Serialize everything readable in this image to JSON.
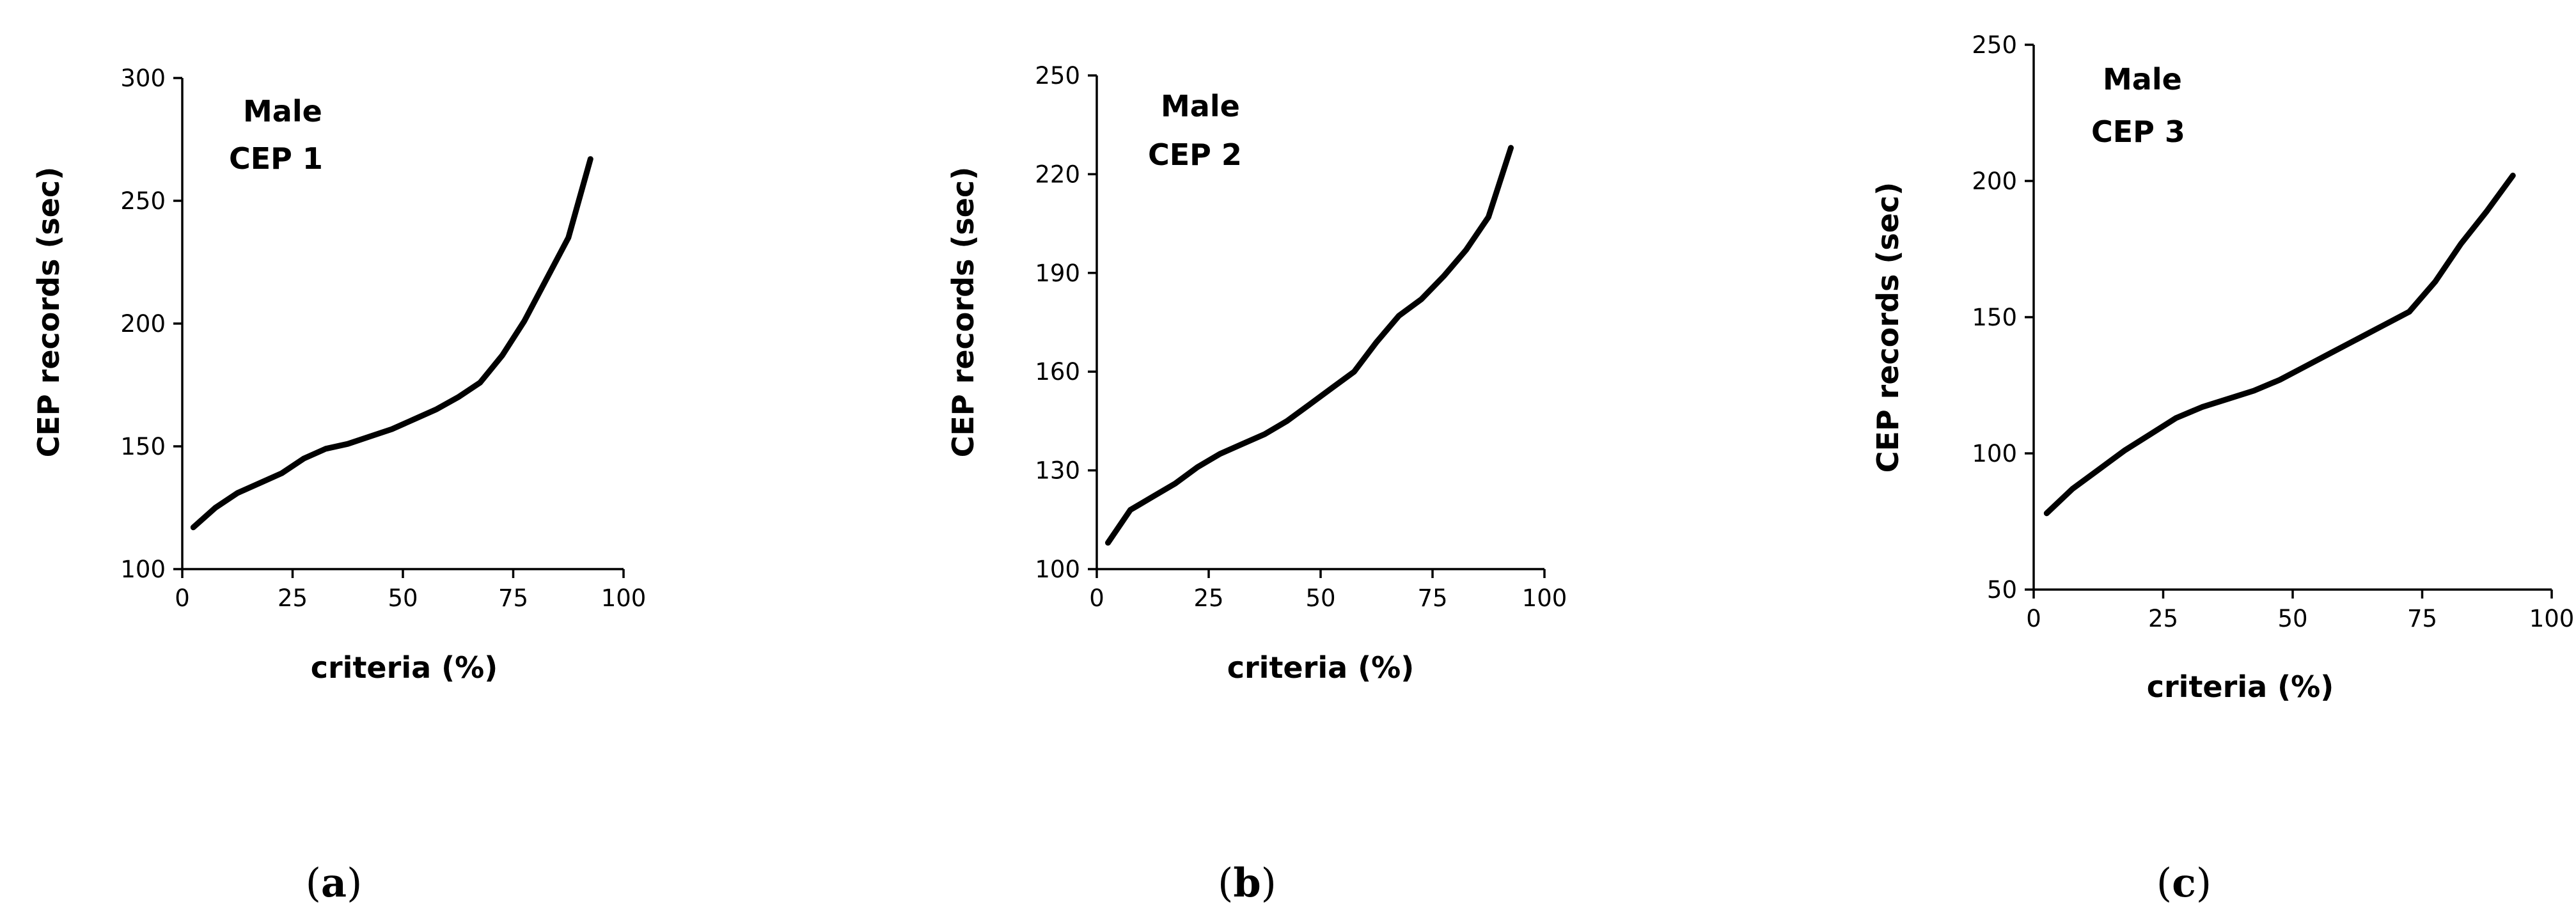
{
  "chart_data": [
    {
      "type": "line",
      "caption": {
        "open": "(",
        "letter": "a",
        "close": ")"
      },
      "annotation_lines": [
        "Male",
        "CEP 1"
      ],
      "xlabel": "criteria (%)",
      "ylabel": "CEP records (sec)",
      "xlim": [
        0,
        100
      ],
      "ylim": [
        100,
        300
      ],
      "xticks": [
        0,
        25,
        50,
        75,
        100
      ],
      "yticks": [
        100,
        150,
        200,
        250,
        300
      ],
      "grid": false,
      "series": [
        {
          "name": "Male CEP 1",
          "x": [
            2.5,
            7.5,
            12.5,
            17.5,
            22.5,
            27.5,
            32.5,
            37.5,
            42.5,
            47.5,
            52.5,
            57.5,
            62.5,
            67.5,
            72.5,
            77.5,
            82.5,
            87.5,
            92.5
          ],
          "y": [
            117,
            125,
            131,
            135,
            139,
            145,
            149,
            151,
            154,
            157,
            161,
            165,
            170,
            176,
            187,
            201,
            218,
            235,
            267
          ]
        }
      ]
    },
    {
      "type": "line",
      "caption": {
        "open": "(",
        "letter": "b",
        "close": ")"
      },
      "annotation_lines": [
        "Male",
        "CEP 2"
      ],
      "xlabel": "criteria (%)",
      "ylabel": "CEP records (sec)",
      "xlim": [
        0,
        100
      ],
      "ylim": [
        100,
        250
      ],
      "xticks": [
        0,
        25,
        50,
        75,
        100
      ],
      "yticks": [
        100,
        130,
        160,
        190,
        220,
        250
      ],
      "grid": false,
      "series": [
        {
          "name": "Male CEP 2",
          "x": [
            2.5,
            7.5,
            12.5,
            17.5,
            22.5,
            27.5,
            32.5,
            37.5,
            42.5,
            47.5,
            52.5,
            57.5,
            62.5,
            67.5,
            72.5,
            77.5,
            82.5,
            87.5,
            92.5
          ],
          "y": [
            108,
            118,
            122,
            126,
            131,
            135,
            138,
            141,
            145,
            150,
            155,
            160,
            169,
            177,
            182,
            189,
            197,
            207,
            228
          ]
        }
      ]
    },
    {
      "type": "line",
      "caption": {
        "open": "(",
        "letter": "c",
        "close": ")"
      },
      "annotation_lines": [
        "Male",
        "CEP 3"
      ],
      "xlabel": "criteria (%)",
      "ylabel": "CEP records (sec)",
      "xlim": [
        0,
        100
      ],
      "ylim": [
        50,
        250
      ],
      "xticks": [
        0,
        25,
        50,
        75,
        100
      ],
      "yticks": [
        50,
        100,
        150,
        200,
        250
      ],
      "grid": false,
      "series": [
        {
          "name": "Male CEP 3",
          "x": [
            2.5,
            7.5,
            12.5,
            17.5,
            22.5,
            27.5,
            32.5,
            37.5,
            42.5,
            47.5,
            52.5,
            57.5,
            62.5,
            67.5,
            72.5,
            77.5,
            82.5,
            87.5,
            92.5
          ],
          "y": [
            78,
            87,
            94,
            101,
            107,
            113,
            117,
            120,
            123,
            127,
            132,
            137,
            142,
            147,
            152,
            163,
            177,
            189,
            202
          ]
        }
      ]
    }
  ]
}
